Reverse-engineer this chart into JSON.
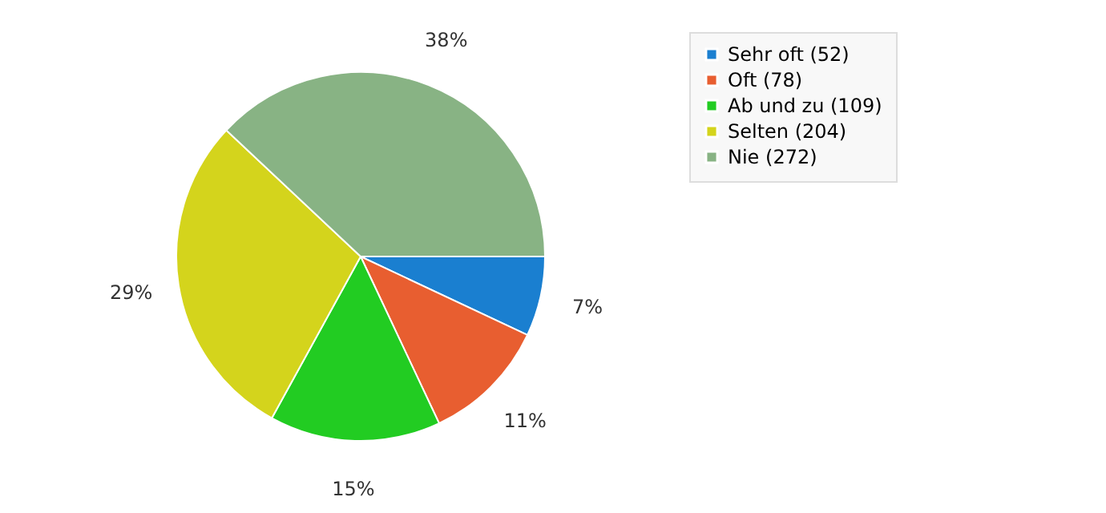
{
  "chart_data": {
    "type": "pie",
    "categories": [
      "Sehr oft (52)",
      "Oft (78)",
      "Ab und zu (109)",
      "Selten (204)",
      "Nie (272)"
    ],
    "values": [
      7,
      11,
      15,
      29,
      38
    ],
    "colors": [
      "#1a7fd0",
      "#e85e30",
      "#22cc22",
      "#d4d41c",
      "#88b384"
    ],
    "value_labels": [
      "7%",
      "11%",
      "15%",
      "29%",
      "38%"
    ],
    "legend": "top right"
  }
}
